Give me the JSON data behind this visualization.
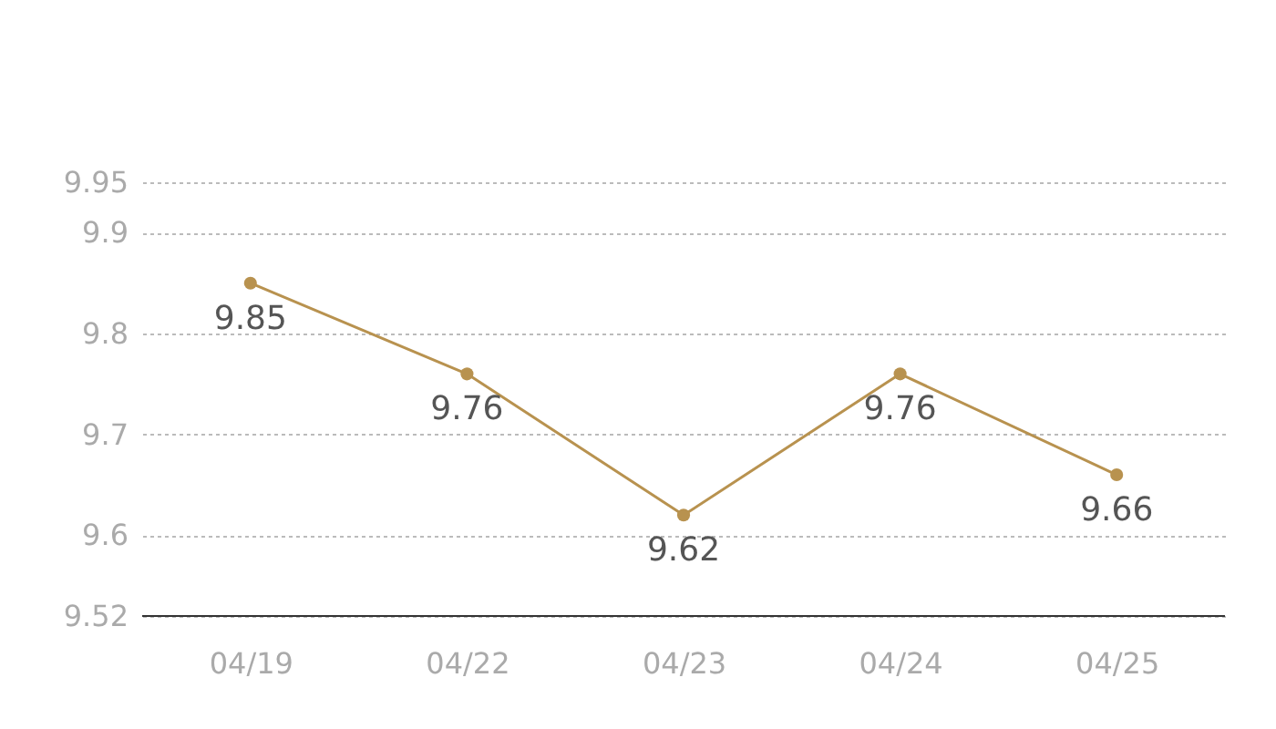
{
  "chart_data": {
    "type": "line",
    "categories": [
      "04/19",
      "04/22",
      "04/23",
      "04/24",
      "04/25"
    ],
    "series": [
      {
        "color": "#b8924f",
        "values": [
          9.85,
          9.76,
          9.62,
          9.76,
          9.66
        ]
      }
    ],
    "ylim": [
      9.52,
      9.95
    ],
    "yticks": [
      9.52,
      9.6,
      9.7,
      9.8,
      9.9,
      9.95
    ],
    "grid": "y",
    "data_labels": true,
    "marker": "circle",
    "line_style": "solid"
  }
}
